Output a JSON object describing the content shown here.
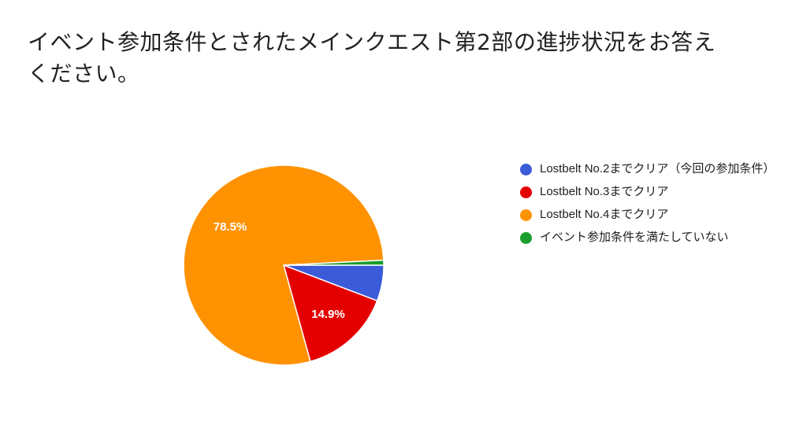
{
  "title": "イベント参加条件とされたメインクエスト第2部の進捗状況をお答えください。",
  "colors": {
    "no2": "#3b5bd9",
    "no3": "#e50000",
    "no4": "#ff9200",
    "none": "#1a9e2a"
  },
  "chart_data": {
    "type": "pie",
    "title": "イベント参加条件とされたメインクエスト第2部の進捗状況をお答えください。",
    "slices": [
      {
        "label": "Lostbelt No.2までクリア（今回の参加条件）",
        "value": 5.8,
        "color": "#3b5bd9",
        "display_label": ""
      },
      {
        "label": "Lostbelt No.3までクリア",
        "value": 14.9,
        "color": "#e50000",
        "display_label": "14.9%"
      },
      {
        "label": "Lostbelt No.4までクリア",
        "value": 78.5,
        "color": "#ff9200",
        "display_label": "78.5%"
      },
      {
        "label": "イベント参加条件を満たしていない",
        "value": 0.8,
        "color": "#1a9e2a",
        "display_label": ""
      }
    ],
    "legend_position": "right"
  }
}
